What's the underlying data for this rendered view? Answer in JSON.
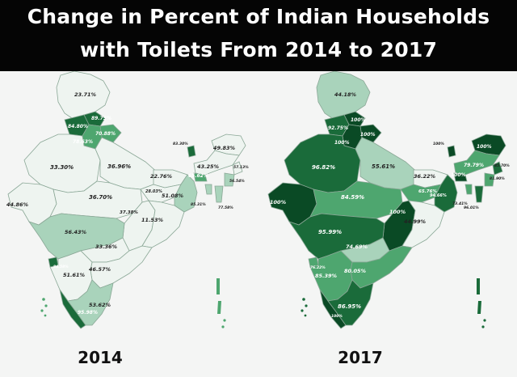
{
  "title": {
    "line1": "Change in Percent of Indian Households",
    "line2": "with Toilets From 2014 to 2017"
  },
  "colors": {
    "lightest": "#eef4f0",
    "light": "#a9d3bb",
    "medium": "#4ea66f",
    "dark": "#1a6b3a",
    "darkest": "#0a4a25",
    "outline": "#8aa796"
  },
  "maps": [
    {
      "year": "2014",
      "labels": [
        {
          "id": "jk",
          "text": "23.71%"
        },
        {
          "id": "hp",
          "text": "89.75%"
        },
        {
          "id": "pb",
          "text": "84.80%"
        },
        {
          "id": "uk",
          "text": "70.88%"
        },
        {
          "id": "hr",
          "text": "78.63%"
        },
        {
          "id": "rj",
          "text": "33.30%"
        },
        {
          "id": "up",
          "text": "36.96%"
        },
        {
          "id": "sk",
          "text": "83.30%"
        },
        {
          "id": "ar",
          "text": "49.83%"
        },
        {
          "id": "as",
          "text": "43.25%"
        },
        {
          "id": "nl",
          "text": "57.13%"
        },
        {
          "id": "bh",
          "text": "22.76%"
        },
        {
          "id": "ml",
          "text": "65.62%"
        },
        {
          "id": "mn",
          "text": "56.54%"
        },
        {
          "id": "jh",
          "text": "28.03%"
        },
        {
          "id": "wb",
          "text": "51.08%"
        },
        {
          "id": "tr",
          "text": "85.31%"
        },
        {
          "id": "mz",
          "text": "77.58%"
        },
        {
          "id": "gj",
          "text": "44.86%"
        },
        {
          "id": "mp",
          "text": "36.70%"
        },
        {
          "id": "cg",
          "text": "37.38%"
        },
        {
          "id": "od",
          "text": "11.53%"
        },
        {
          "id": "mh",
          "text": "56.43%"
        },
        {
          "id": "tg",
          "text": "33.36%"
        },
        {
          "id": "goa",
          "text": "84.58%"
        },
        {
          "id": "ka",
          "text": "51.61%"
        },
        {
          "id": "ap",
          "text": "46.57%"
        },
        {
          "id": "tn",
          "text": "53.62%"
        },
        {
          "id": "kl",
          "text": "95.98%"
        }
      ]
    },
    {
      "year": "2017",
      "labels": [
        {
          "id": "jk",
          "text": "44.18%"
        },
        {
          "id": "hp",
          "text": "100%"
        },
        {
          "id": "pb",
          "text": "92.75%"
        },
        {
          "id": "uk",
          "text": "100%"
        },
        {
          "id": "hr",
          "text": "100%"
        },
        {
          "id": "rj",
          "text": "96.82%"
        },
        {
          "id": "up",
          "text": "55.61%"
        },
        {
          "id": "sk",
          "text": "100%"
        },
        {
          "id": "ar",
          "text": "100%"
        },
        {
          "id": "as",
          "text": "79.79%"
        },
        {
          "id": "nl",
          "text": "85.70%"
        },
        {
          "id": "bh",
          "text": "36.22%"
        },
        {
          "id": "ml",
          "text": "100%"
        },
        {
          "id": "mn",
          "text": "81.90%"
        },
        {
          "id": "jh",
          "text": "65.76%"
        },
        {
          "id": "wb",
          "text": "94.66%"
        },
        {
          "id": "tr",
          "text": "73.41%"
        },
        {
          "id": "mz",
          "text": "96.01%"
        },
        {
          "id": "gj",
          "text": "100%"
        },
        {
          "id": "mp",
          "text": "84.59%"
        },
        {
          "id": "cg",
          "text": "100%"
        },
        {
          "id": "od",
          "text": "44.99%"
        },
        {
          "id": "mh",
          "text": "95.99%"
        },
        {
          "id": "tg",
          "text": "74.69%"
        },
        {
          "id": "goa",
          "text": "76.22%"
        },
        {
          "id": "ka",
          "text": "85.39%"
        },
        {
          "id": "ap",
          "text": "80.05%"
        },
        {
          "id": "tn",
          "text": "86.95%"
        },
        {
          "id": "kl",
          "text": "100%"
        }
      ]
    }
  ]
}
